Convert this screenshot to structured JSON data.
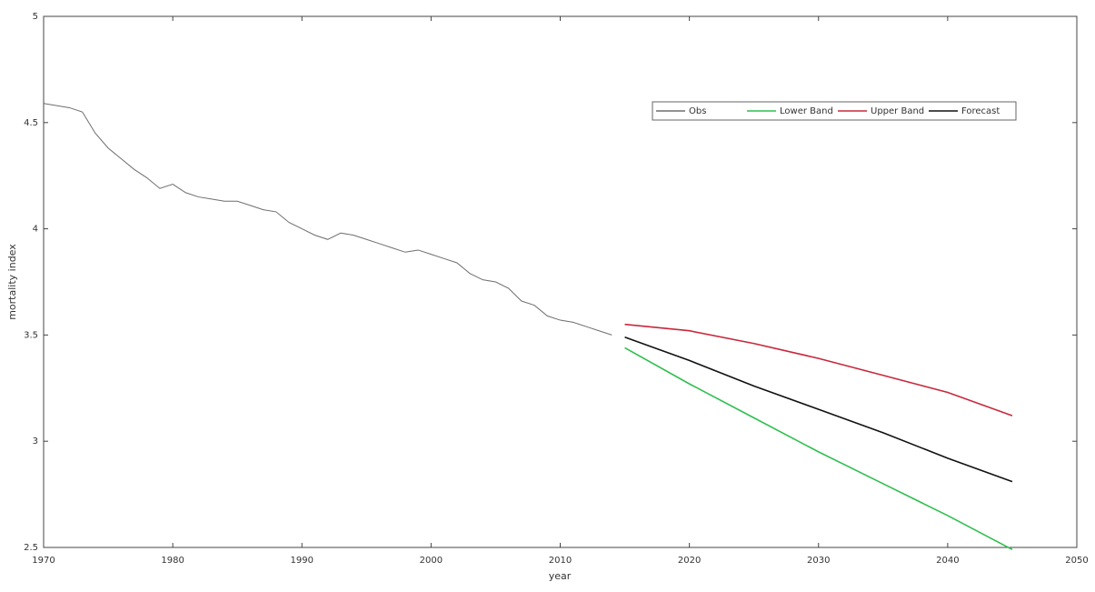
{
  "chart_data": {
    "type": "line",
    "xlabel": "year",
    "ylabel": "mortality index",
    "xlim": [
      1970,
      2050
    ],
    "xticks": [
      1970,
      1980,
      1990,
      2000,
      2010,
      2020,
      2030,
      2040,
      2050
    ],
    "ylim": [
      2.5,
      5
    ],
    "yticks": [
      2.5,
      3,
      3.5,
      4,
      4.5,
      5
    ],
    "grid": false,
    "legend": "upper right",
    "series": [
      {
        "name": "Obs",
        "color": "#6e6e6e",
        "x": [
          1970,
          1971,
          1972,
          1973,
          1974,
          1975,
          1976,
          1977,
          1978,
          1979,
          1980,
          1981,
          1982,
          1983,
          1984,
          1985,
          1986,
          1987,
          1988,
          1989,
          1990,
          1991,
          1992,
          1993,
          1994,
          1995,
          1996,
          1997,
          1998,
          1999,
          2000,
          2001,
          2002,
          2003,
          2004,
          2005,
          2006,
          2007,
          2008,
          2009,
          2010,
          2011,
          2012,
          2013,
          2014
        ],
        "values": [
          4.59,
          4.58,
          4.57,
          4.55,
          4.45,
          4.38,
          4.33,
          4.28,
          4.24,
          4.19,
          4.21,
          4.17,
          4.15,
          4.14,
          4.13,
          4.13,
          4.11,
          4.09,
          4.08,
          4.03,
          4.0,
          3.97,
          3.95,
          3.98,
          3.97,
          3.95,
          3.93,
          3.91,
          3.89,
          3.9,
          3.88,
          3.86,
          3.84,
          3.79,
          3.76,
          3.75,
          3.72,
          3.66,
          3.64,
          3.59,
          3.57,
          3.56,
          3.54,
          3.52,
          3.5
        ]
      },
      {
        "name": "Lower Band",
        "color": "#2fbf4f",
        "x": [
          2015,
          2020,
          2025,
          2030,
          2035,
          2040,
          2045
        ],
        "values": [
          3.44,
          3.27,
          3.11,
          2.95,
          2.8,
          2.65,
          2.49
        ]
      },
      {
        "name": "Upper Band",
        "color": "#c8283c",
        "x": [
          2015,
          2020,
          2025,
          2030,
          2035,
          2040,
          2045
        ],
        "values": [
          3.55,
          3.52,
          3.46,
          3.39,
          3.31,
          3.23,
          3.12
        ]
      },
      {
        "name": "Forecast",
        "color": "#111111",
        "x": [
          2015,
          2020,
          2025,
          2030,
          2035,
          2040,
          2045
        ],
        "values": [
          3.49,
          3.38,
          3.26,
          3.15,
          3.04,
          2.92,
          2.81
        ]
      }
    ]
  }
}
